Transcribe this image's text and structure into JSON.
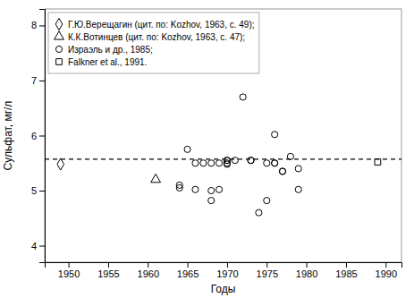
{
  "chart_data": {
    "type": "scatter",
    "xlabel": "Годы",
    "ylabel": "Сульфат, мг/л",
    "xlim": [
      1947,
      1992
    ],
    "ylim": [
      3.7,
      8.3
    ],
    "xticks": [
      1950,
      1955,
      1960,
      1965,
      1970,
      1975,
      1980,
      1985,
      1990
    ],
    "yticks": [
      4,
      5,
      6,
      7,
      8
    ],
    "hline": 5.57,
    "legend": "upper left",
    "series": [
      {
        "name": "Г.Ю.Верещагин (цит. по: Kozhov, 1963, с. 49);",
        "color": "black",
        "marker": "diamond",
        "x": [
          1949
        ],
        "values": [
          5.48
        ]
      },
      {
        "name": "К.К.Вотинцев (цит. по: Kozhov, 1963, с. 47);",
        "color": "black",
        "marker": "triangle",
        "x": [
          1961
        ],
        "values": [
          5.2
        ]
      },
      {
        "name": "Израэль и др., 1985;",
        "color": "black",
        "marker": "circle",
        "x": [
          1964,
          1964,
          1965,
          1966,
          1966,
          1967,
          1968,
          1968,
          1968,
          1969,
          1969,
          1970,
          1970,
          1970,
          1970,
          1971,
          1972,
          1973,
          1973,
          1974,
          1975,
          1975,
          1976,
          1976,
          1976,
          1977,
          1977,
          1978,
          1979,
          1979
        ],
        "values": [
          5.05,
          5.1,
          5.75,
          5.5,
          5.02,
          5.5,
          5.5,
          5.0,
          4.82,
          5.5,
          5.02,
          5.55,
          5.55,
          5.5,
          5.48,
          5.55,
          6.7,
          5.55,
          5.55,
          4.6,
          5.5,
          4.82,
          6.02,
          5.5,
          5.5,
          5.35,
          5.35,
          5.62,
          5.4,
          5.02
        ]
      },
      {
        "name": "Falkner et al., 1991.",
        "color": "black",
        "marker": "square",
        "x": [
          1989
        ],
        "values": [
          5.52
        ]
      }
    ]
  }
}
